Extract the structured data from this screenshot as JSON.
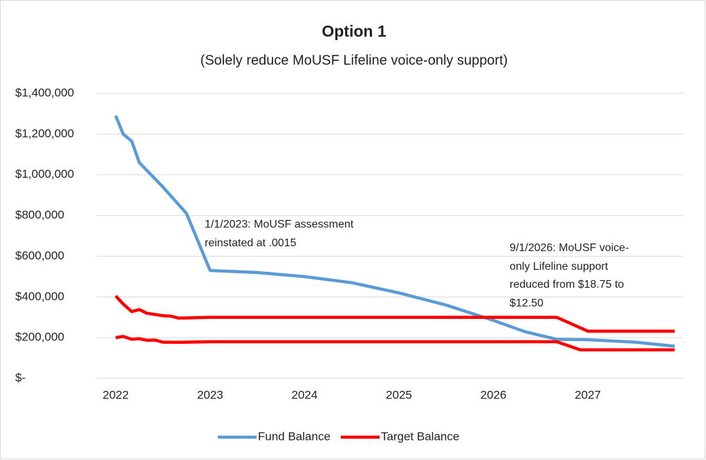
{
  "chart_data": {
    "type": "line",
    "title": "Option 1",
    "subtitle": "(Solely reduce MoUSF Lifeline voice-only support)",
    "xlim": [
      2021.8,
      2028.01
    ],
    "xticks": [
      2022,
      2023,
      2024,
      2025,
      2026,
      2027
    ],
    "ylim": [
      0,
      1400000
    ],
    "yticks": [
      {
        "value": 0,
        "label": "$-"
      },
      {
        "value": 200000,
        "label": "$200,000"
      },
      {
        "value": 400000,
        "label": "$400,000"
      },
      {
        "value": 600000,
        "label": "$600,000"
      },
      {
        "value": 800000,
        "label": "$800,000"
      },
      {
        "value": 1000000,
        "label": "$1,000,000"
      },
      {
        "value": 1200000,
        "label": "$1,200,000"
      },
      {
        "value": 1400000,
        "label": "$1,400,000"
      }
    ],
    "grid": true,
    "legend": "bottom",
    "series": [
      {
        "name": "Fund Balance",
        "color": "#5b9bd5",
        "x": [
          2022.0,
          2022.08,
          2022.17,
          2022.25,
          2022.5,
          2022.75,
          2023.0,
          2023.5,
          2024.0,
          2024.5,
          2025.0,
          2025.5,
          2026.0,
          2026.33,
          2026.67,
          2027.0,
          2027.5,
          2027.92
        ],
        "values": [
          1290000,
          1200000,
          1165000,
          1060000,
          940000,
          810000,
          530000,
          520000,
          500000,
          470000,
          420000,
          360000,
          285000,
          230000,
          192000,
          190000,
          178000,
          158000
        ]
      },
      {
        "name": "Target Balance",
        "color": "#ff0000",
        "x": [
          2022.0,
          2022.08,
          2022.17,
          2022.25,
          2022.33,
          2022.5,
          2022.58,
          2022.67,
          2023.0,
          2026.67,
          2027.0,
          2027.92
        ],
        "values": [
          405000,
          365000,
          328000,
          338000,
          320000,
          308000,
          306000,
          296000,
          300000,
          300000,
          232000,
          232000
        ]
      },
      {
        "color": "#ff0000",
        "x": [
          2022.0,
          2022.08,
          2022.17,
          2022.25,
          2022.33,
          2022.42,
          2022.5,
          2022.67,
          2023.0,
          2026.67,
          2026.92,
          2027.92
        ],
        "values": [
          200000,
          206000,
          192000,
          195000,
          187000,
          188000,
          178000,
          177000,
          180000,
          180000,
          140000,
          140000
        ]
      }
    ],
    "annotations": [
      {
        "lines": [
          "1/1/2023: MoUSF assessment",
          "reinstated at .0015"
        ]
      },
      {
        "lines": [
          "9/1/2026: MoUSF voice-",
          "only Lifeline support",
          "reduced from $18.75 to",
          "$12.50"
        ]
      }
    ]
  }
}
